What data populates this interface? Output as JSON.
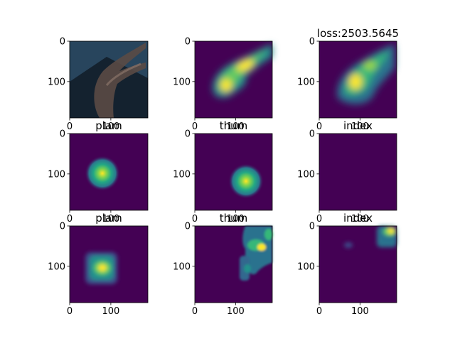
{
  "figure": {
    "loss_label": "loss:2503.5645"
  },
  "chart_data": {
    "type": "heatmap",
    "grid": "3x3",
    "colormap": "viridis",
    "panels": [
      {
        "row": 0,
        "col": 0,
        "title": "",
        "kind": "photo",
        "x_ticks": [
          "0",
          "100"
        ],
        "y_ticks": [
          "0",
          "100"
        ],
        "extent": [
          0,
          190
        ]
      },
      {
        "row": 0,
        "col": 1,
        "title": "",
        "kind": "heatmap",
        "x_ticks": [
          "0",
          "100"
        ],
        "y_ticks": [
          "0",
          "100"
        ],
        "extent": [
          0,
          190
        ]
      },
      {
        "row": 0,
        "col": 2,
        "title": "loss:2503.5645",
        "kind": "heatmap",
        "x_ticks": [
          "0",
          "100"
        ],
        "y_ticks": [
          "0",
          "100"
        ],
        "extent": [
          0,
          190
        ]
      },
      {
        "row": 1,
        "col": 0,
        "title": "plam",
        "kind": "gaussian",
        "center": [
          80,
          100
        ],
        "sigma": 14,
        "x_ticks": [
          "0",
          "100"
        ],
        "y_ticks": [
          "0",
          "100"
        ],
        "extent": [
          0,
          190
        ]
      },
      {
        "row": 1,
        "col": 1,
        "title": "thum",
        "kind": "gaussian",
        "center": [
          122,
          118
        ],
        "sigma": 14,
        "x_ticks": [
          "0",
          "100"
        ],
        "y_ticks": [
          "0",
          "100"
        ],
        "extent": [
          0,
          190
        ]
      },
      {
        "row": 1,
        "col": 2,
        "title": "index",
        "kind": "empty",
        "x_ticks": [
          "0",
          "100"
        ],
        "y_ticks": [
          "0",
          "100"
        ],
        "extent": [
          0,
          190
        ]
      },
      {
        "row": 2,
        "col": 0,
        "title": "plam",
        "kind": "heatmap",
        "x_ticks": [
          "0",
          "100"
        ],
        "y_ticks": [
          "0",
          "100"
        ],
        "extent": [
          0,
          190
        ]
      },
      {
        "row": 2,
        "col": 1,
        "title": "thum",
        "kind": "heatmap",
        "x_ticks": [
          "0",
          "100"
        ],
        "y_ticks": [
          "0",
          "100"
        ],
        "extent": [
          0,
          190
        ]
      },
      {
        "row": 2,
        "col": 2,
        "title": "index",
        "kind": "heatmap",
        "x_ticks": [
          "0",
          "100"
        ],
        "y_ticks": [
          "0",
          "100"
        ],
        "extent": [
          0,
          190
        ]
      }
    ]
  }
}
